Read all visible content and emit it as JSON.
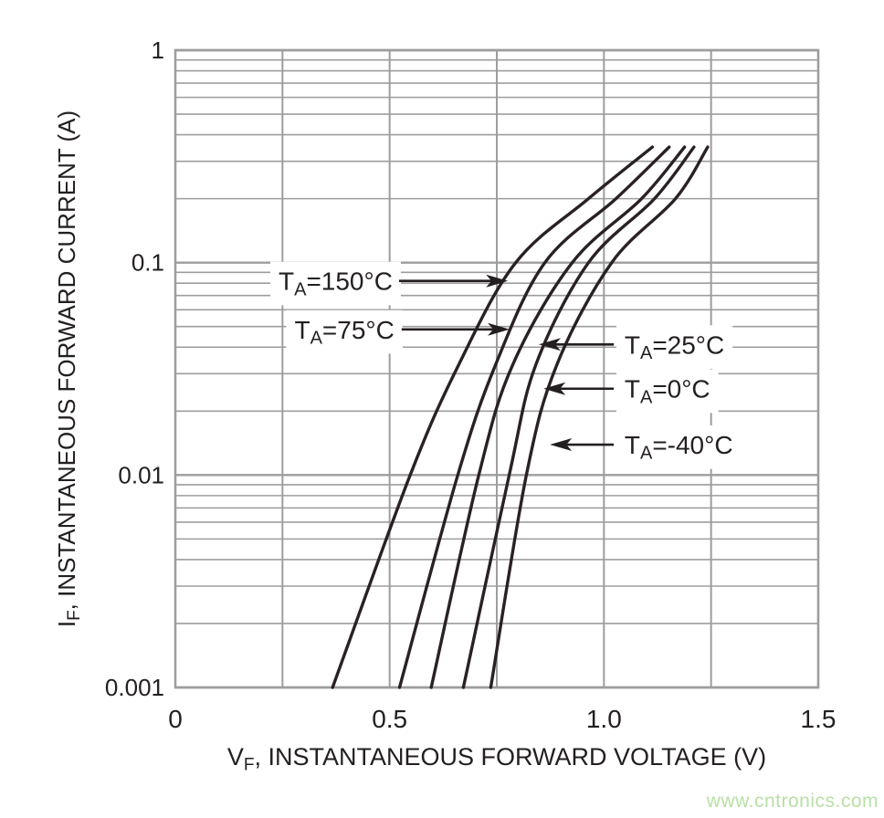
{
  "page": {
    "background": "#ffffff"
  },
  "watermark": {
    "text": "www.cntronics.com",
    "color": "#b9dfa6"
  },
  "colors": {
    "grid": "#9d9d9d",
    "curve": "#2a2124",
    "text": "#231f20",
    "annotation_arrow": "#231f20",
    "label_mask": "#ffffff"
  },
  "chart_data": {
    "type": "line",
    "title": "",
    "x_scale": "linear",
    "y_scale": "log",
    "xlabel": {
      "pre": "V",
      "sub": "F",
      "post": ", INSTANTANEOUS FORWARD VOLTAGE (V)"
    },
    "ylabel": {
      "pre": "I",
      "sub": "F",
      "post": ", INSTANTANEOUS FORWARD CURRENT (A)"
    },
    "xlim": [
      0,
      1.5
    ],
    "ylim": [
      0.001,
      1
    ],
    "x_ticks": {
      "values": [
        0,
        0.5,
        1.0,
        1.5
      ],
      "labels": [
        "0",
        "0.5",
        "1.0",
        "1.5"
      ],
      "minor_step": 0.25
    },
    "y_ticks": {
      "values": [
        1,
        0.1,
        0.01,
        0.001
      ],
      "labels": [
        "1",
        "0.1",
        "0.01",
        "0.001"
      ]
    },
    "grid": {
      "show": true
    },
    "series": [
      {
        "id": "ta-150c",
        "name": "TA=150°C",
        "temp_c": 150,
        "points": [
          [
            0.367,
            0.001
          ],
          [
            0.548,
            0.01
          ],
          [
            0.661,
            0.033
          ],
          [
            0.794,
            0.1
          ],
          [
            0.964,
            0.2
          ],
          [
            1.113,
            0.35
          ]
        ]
      },
      {
        "id": "ta-75c",
        "name": "TA=75°C",
        "temp_c": 75,
        "points": [
          [
            0.523,
            0.001
          ],
          [
            0.659,
            0.01
          ],
          [
            0.747,
            0.033
          ],
          [
            0.862,
            0.1
          ],
          [
            1.028,
            0.2
          ],
          [
            1.152,
            0.35
          ]
        ]
      },
      {
        "id": "ta-25c",
        "name": "TA=25°C",
        "temp_c": 25,
        "points": [
          [
            0.597,
            0.001
          ],
          [
            0.708,
            0.01
          ],
          [
            0.787,
            0.033
          ],
          [
            0.926,
            0.1
          ],
          [
            1.088,
            0.2
          ],
          [
            1.188,
            0.35
          ]
        ]
      },
      {
        "id": "ta-0c",
        "name": "TA=0°C",
        "temp_c": 0,
        "points": [
          [
            0.672,
            0.001
          ],
          [
            0.779,
            0.01
          ],
          [
            0.841,
            0.033
          ],
          [
            0.964,
            0.1
          ],
          [
            1.118,
            0.2
          ],
          [
            1.21,
            0.35
          ]
        ]
      },
      {
        "id": "ta-neg40c",
        "name": "TA=-40°C",
        "temp_c": -40,
        "points": [
          [
            0.736,
            0.001
          ],
          [
            0.819,
            0.01
          ],
          [
            0.89,
            0.033
          ],
          [
            1.018,
            0.1
          ],
          [
            1.167,
            0.2
          ],
          [
            1.242,
            0.35
          ]
        ]
      }
    ],
    "annotations": [
      {
        "id": "ta-150c",
        "pre": "T",
        "sub": "A",
        "post": "=150°C",
        "side": "left",
        "i_level": 0.082,
        "v_tip": 0.776,
        "v_start": 0.522,
        "v_text": 0.507
      },
      {
        "id": "ta-75c",
        "pre": "T",
        "sub": "A",
        "post": "=75°C",
        "side": "left",
        "i_level": 0.0485,
        "v_tip": 0.78,
        "v_start": 0.528,
        "v_text": 0.511
      },
      {
        "id": "ta-25c",
        "pre": "T",
        "sub": "A",
        "post": "=25°C",
        "side": "right",
        "i_level": 0.0412,
        "v_tip": 0.848,
        "v_start": 1.023,
        "v_text": 1.048
      },
      {
        "id": "ta-0c",
        "pre": "T",
        "sub": "A",
        "post": "=0°C",
        "side": "right",
        "i_level": 0.0255,
        "v_tip": 0.859,
        "v_start": 1.023,
        "v_text": 1.048
      },
      {
        "id": "ta-neg40c",
        "pre": "T",
        "sub": "A",
        "post": "=-40°C",
        "side": "right",
        "i_level": 0.0139,
        "v_tip": 0.874,
        "v_start": 1.023,
        "v_text": 1.048
      }
    ]
  }
}
